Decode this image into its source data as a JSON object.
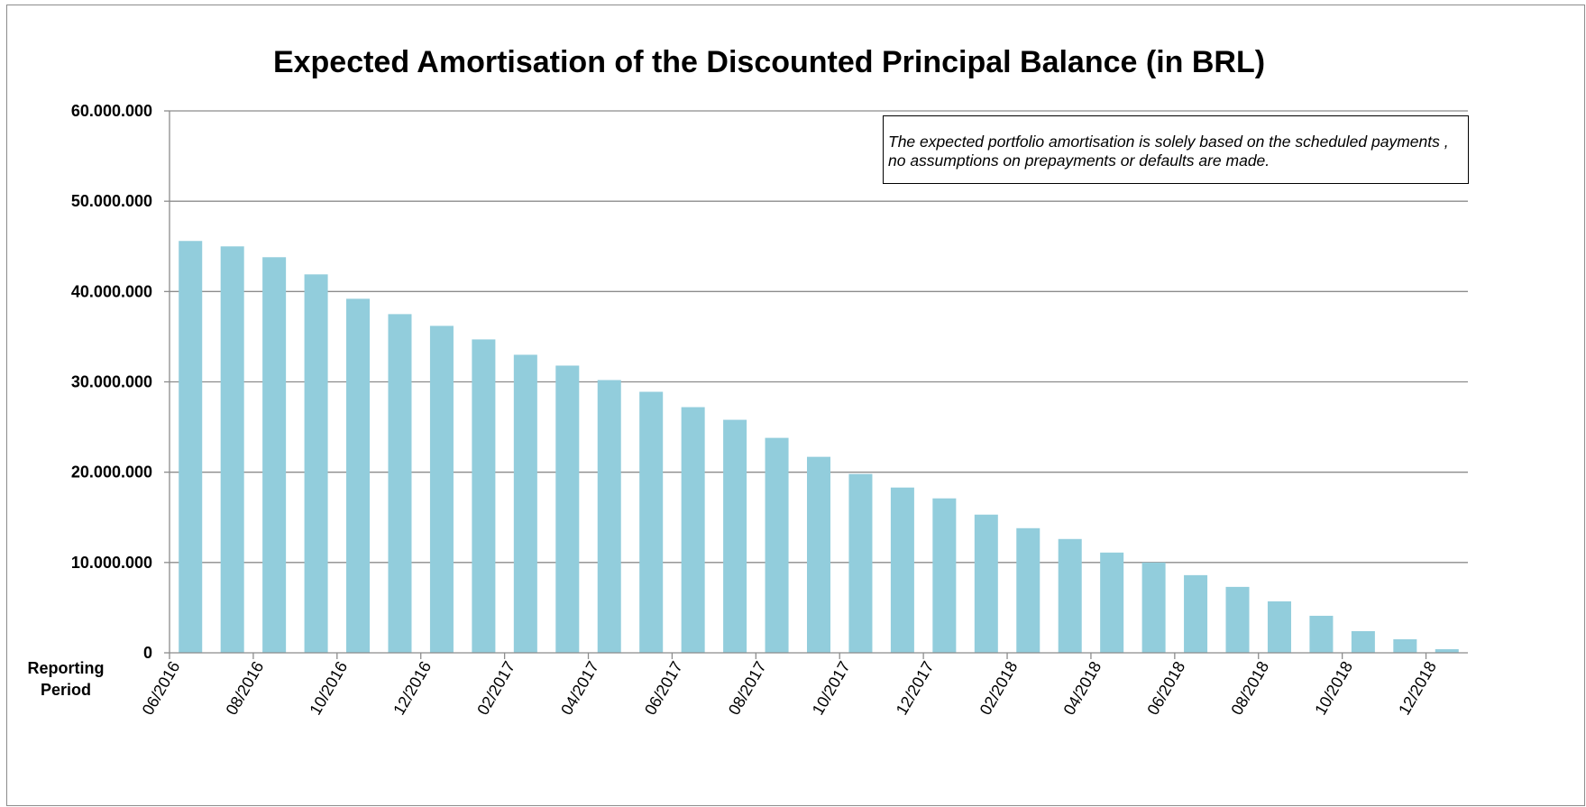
{
  "chart_data": {
    "type": "bar",
    "title": "Expected Amortisation of the Discounted Principal Balance (in BRL)",
    "xlabel": "Reporting Period",
    "ylabel": "",
    "ylim": [
      0,
      60000000
    ],
    "grid": true,
    "yticks": [
      {
        "value": 0,
        "label": "0"
      },
      {
        "value": 10000000,
        "label": "10.000.000"
      },
      {
        "value": 20000000,
        "label": "20.000.000"
      },
      {
        "value": 30000000,
        "label": "30.000.000"
      },
      {
        "value": 40000000,
        "label": "40.000.000"
      },
      {
        "value": 50000000,
        "label": "50.000.000"
      },
      {
        "value": 60000000,
        "label": "60.000.000"
      }
    ],
    "categories": [
      "06/2016",
      "07/2016",
      "08/2016",
      "09/2016",
      "10/2016",
      "11/2016",
      "12/2016",
      "01/2017",
      "02/2017",
      "03/2017",
      "04/2017",
      "05/2017",
      "06/2017",
      "07/2017",
      "08/2017",
      "09/2017",
      "10/2017",
      "11/2017",
      "12/2017",
      "01/2018",
      "02/2018",
      "03/2018",
      "04/2018",
      "05/2018",
      "06/2018",
      "07/2018",
      "08/2018",
      "09/2018",
      "10/2018",
      "11/2018",
      "12/2018"
    ],
    "tick_labels": [
      "06/2016",
      "08/2016",
      "10/2016",
      "12/2016",
      "02/2017",
      "04/2017",
      "06/2017",
      "08/2017",
      "10/2017",
      "12/2017",
      "02/2018",
      "04/2018",
      "06/2018",
      "08/2018",
      "10/2018",
      "12/2018"
    ],
    "values": [
      45600000,
      45000000,
      43800000,
      41900000,
      39200000,
      37500000,
      36200000,
      34700000,
      33000000,
      31800000,
      30200000,
      28900000,
      27200000,
      25800000,
      23800000,
      21700000,
      19800000,
      18300000,
      17100000,
      15300000,
      13800000,
      12600000,
      11100000,
      10000000,
      8600000,
      7300000,
      5700000,
      4100000,
      2400000,
      1500000,
      400000
    ],
    "bar_color": "#92CDDC",
    "annotation": "The expected portfolio amortisation is solely based on the scheduled payments , no assumptions on prepayments or defaults are made."
  }
}
